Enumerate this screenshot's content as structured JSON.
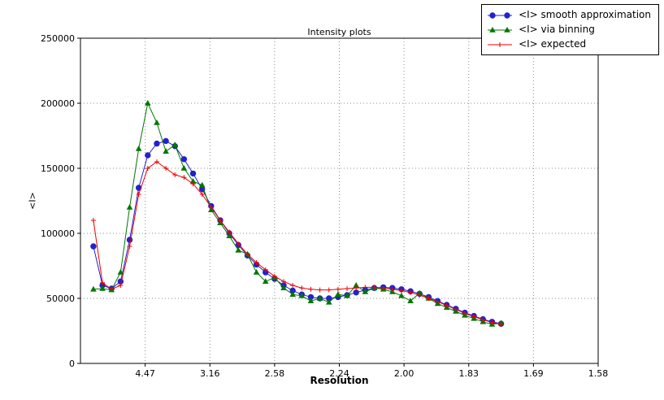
{
  "chart_data": {
    "type": "line",
    "title": "Intensity plots",
    "xlabel": "Resolution",
    "ylabel": "<I>",
    "grid": true,
    "legend_position": "top-right",
    "xlim": [
      0,
      0.4
    ],
    "ylim": [
      0,
      250000
    ],
    "xticks": [
      {
        "label": "4.47",
        "pos": 0.05
      },
      {
        "label": "3.16",
        "pos": 0.1
      },
      {
        "label": "2.58",
        "pos": 0.15
      },
      {
        "label": "2.24",
        "pos": 0.2
      },
      {
        "label": "2.00",
        "pos": 0.25
      },
      {
        "label": "1.83",
        "pos": 0.3
      },
      {
        "label": "1.69",
        "pos": 0.35
      },
      {
        "label": "1.58",
        "pos": 0.4
      }
    ],
    "yticks": [
      0,
      50000,
      100000,
      150000,
      200000,
      250000
    ],
    "x": [
      0.01,
      0.017,
      0.024,
      0.031,
      0.038,
      0.045,
      0.052,
      0.059,
      0.066,
      0.073,
      0.08,
      0.087,
      0.094,
      0.101,
      0.108,
      0.115,
      0.122,
      0.129,
      0.136,
      0.143,
      0.15,
      0.157,
      0.164,
      0.171,
      0.178,
      0.185,
      0.192,
      0.199,
      0.206,
      0.213,
      0.22,
      0.227,
      0.234,
      0.241,
      0.248,
      0.255,
      0.262,
      0.269,
      0.276,
      0.283,
      0.29,
      0.297,
      0.304,
      0.311,
      0.318,
      0.325
    ],
    "series": [
      {
        "name": "<I> smooth approximation",
        "color": "#2222cc",
        "marker": "circle",
        "values": [
          90000,
          60000,
          57500,
          63000,
          95000,
          135000,
          160000,
          169000,
          171000,
          167000,
          157000,
          146000,
          134000,
          121000,
          110000,
          100000,
          91000,
          83000,
          76000,
          70000,
          65000,
          60000,
          56000,
          53000,
          51000,
          50000,
          50000,
          51000,
          52500,
          54500,
          56500,
          58000,
          58500,
          58000,
          57000,
          55500,
          53500,
          51000,
          48000,
          45000,
          42000,
          39000,
          36500,
          34000,
          32000,
          30500
        ]
      },
      {
        "name": "<I> via binning",
        "color": "#007700",
        "marker": "triangle",
        "values": [
          57000,
          57500,
          56500,
          70000,
          120000,
          165000,
          200000,
          185000,
          163000,
          168000,
          150000,
          140000,
          137000,
          118000,
          108000,
          98000,
          87000,
          84000,
          70000,
          63000,
          66000,
          58000,
          53000,
          52000,
          48000,
          50000,
          47000,
          53000,
          52000,
          60000,
          55000,
          58000,
          57000,
          55000,
          52000,
          48000,
          54000,
          50000,
          46000,
          43000,
          40000,
          37000,
          34500,
          32000,
          30000,
          31000
        ]
      },
      {
        "name": "<I> expected",
        "color": "#ee0000",
        "marker": "plus",
        "values": [
          110000,
          62000,
          57000,
          60000,
          90000,
          130000,
          150000,
          155000,
          150000,
          145000,
          143000,
          138000,
          130000,
          120000,
          110000,
          101000,
          92000,
          84000,
          77500,
          72000,
          67000,
          63000,
          60000,
          58000,
          57000,
          56500,
          56500,
          57000,
          57500,
          58000,
          58500,
          58500,
          58000,
          57000,
          56000,
          54500,
          52500,
          50000,
          47500,
          44500,
          41500,
          38500,
          36000,
          33500,
          31500,
          30000
        ]
      }
    ]
  }
}
